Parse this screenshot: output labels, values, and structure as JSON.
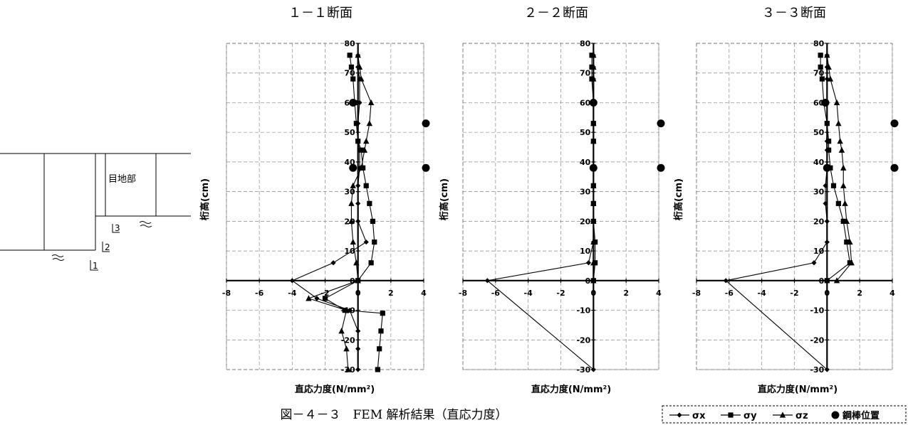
{
  "figure_caption": "図－４－３　FEM 解析結果（直応力度）",
  "joint_diagram": {
    "joint_label": "目地部",
    "section_marks": [
      "1",
      "2",
      "3"
    ]
  },
  "legend": {
    "items": [
      {
        "label": "σx",
        "marker": "diamond"
      },
      {
        "label": "σy",
        "marker": "square"
      },
      {
        "label": "σz",
        "marker": "triangle"
      },
      {
        "label": "鋼棒位置",
        "marker": "circle"
      }
    ]
  },
  "chart_data": [
    {
      "type": "line",
      "title": "１－１断面",
      "xlabel": "直応力度(N/mm²)",
      "ylabel": "桁高(cm)",
      "xlim": [
        -8,
        4
      ],
      "ylim": [
        -30,
        80
      ],
      "x_ticks": [
        -8,
        -6,
        -4,
        -2,
        0,
        2,
        4
      ],
      "y_ticks": [
        80,
        70,
        60,
        50,
        40,
        30,
        20,
        10,
        0,
        -10,
        -20,
        -30
      ],
      "grid": true,
      "series": [
        {
          "name": "σx",
          "marker": "diamond",
          "points": [
            [
              0.0,
              76
            ],
            [
              0.0,
              72
            ],
            [
              0.1,
              68
            ],
            [
              0.1,
              60
            ],
            [
              0.0,
              53
            ],
            [
              0.0,
              47
            ],
            [
              0.1,
              44
            ],
            [
              0.1,
              38
            ],
            [
              0.0,
              32
            ],
            [
              0.0,
              26
            ],
            [
              0.0,
              20
            ],
            [
              0.5,
              13
            ],
            [
              -1.5,
              6
            ],
            [
              -4.0,
              0
            ],
            [
              -2.5,
              -6
            ],
            [
              -0.5,
              -10
            ],
            [
              0.0,
              -17
            ],
            [
              0.0,
              -23
            ],
            [
              0.0,
              -30
            ]
          ]
        },
        {
          "name": "σy",
          "marker": "square",
          "points": [
            [
              -0.5,
              76
            ],
            [
              -0.4,
              72
            ],
            [
              -0.3,
              68
            ],
            [
              -0.2,
              60
            ],
            [
              -0.1,
              53
            ],
            [
              0.0,
              47
            ],
            [
              0.2,
              44
            ],
            [
              0.3,
              38
            ],
            [
              0.5,
              32
            ],
            [
              0.7,
              26
            ],
            [
              0.9,
              20
            ],
            [
              1.0,
              13
            ],
            [
              0.8,
              6
            ],
            [
              0.0,
              0
            ],
            [
              -2.0,
              -6
            ],
            [
              -0.8,
              -10
            ],
            [
              1.5,
              -11
            ],
            [
              1.4,
              -17
            ],
            [
              1.3,
              -23
            ],
            [
              1.2,
              -30
            ]
          ]
        },
        {
          "name": "σz",
          "marker": "triangle",
          "points": [
            [
              0.0,
              76
            ],
            [
              0.1,
              72
            ],
            [
              0.2,
              68
            ],
            [
              0.8,
              60
            ],
            [
              0.7,
              53
            ],
            [
              0.5,
              47
            ],
            [
              0.4,
              44
            ],
            [
              0.2,
              38
            ],
            [
              -0.3,
              32
            ],
            [
              -0.4,
              26
            ],
            [
              -0.4,
              20
            ],
            [
              -0.3,
              13
            ],
            [
              -0.1,
              6
            ],
            [
              0.0,
              0
            ],
            [
              -3.0,
              -6
            ],
            [
              -0.7,
              -10
            ],
            [
              -1.0,
              -17
            ],
            [
              -0.7,
              -23
            ],
            [
              -0.6,
              -30
            ]
          ]
        },
        {
          "name": "鋼棒位置",
          "marker": "circle",
          "points": [
            [
              -0.3,
              60
            ],
            [
              -0.3,
              38
            ]
          ]
        }
      ],
      "rebar_outside": [
        53,
        38
      ]
    },
    {
      "type": "line",
      "title": "２－２断面",
      "xlabel": "直応力度(N/mm²)",
      "ylabel": "桁高(cm)",
      "xlim": [
        -8,
        4
      ],
      "ylim": [
        -30,
        80
      ],
      "x_ticks": [
        -8,
        -6,
        -4,
        -2,
        0,
        2,
        4
      ],
      "y_ticks": [
        80,
        70,
        60,
        50,
        40,
        30,
        20,
        10,
        0,
        -10,
        -20,
        -30
      ],
      "grid": true,
      "series": [
        {
          "name": "σx",
          "marker": "diamond",
          "points": [
            [
              0.0,
              76
            ],
            [
              0.0,
              72
            ],
            [
              0.0,
              68
            ],
            [
              0.0,
              60
            ],
            [
              0.0,
              53
            ],
            [
              0.0,
              47
            ],
            [
              0.0,
              38
            ],
            [
              0.0,
              32
            ],
            [
              0.0,
              26
            ],
            [
              0.0,
              20
            ],
            [
              0.0,
              13
            ],
            [
              -0.3,
              6
            ],
            [
              -6.5,
              0
            ],
            [
              0.0,
              -30
            ]
          ]
        },
        {
          "name": "σy",
          "marker": "square",
          "points": [
            [
              -0.1,
              76
            ],
            [
              -0.1,
              72
            ],
            [
              -0.1,
              68
            ],
            [
              0.0,
              60
            ],
            [
              0.0,
              53
            ],
            [
              0.0,
              47
            ],
            [
              0.0,
              38
            ],
            [
              0.0,
              32
            ],
            [
              0.0,
              26
            ],
            [
              0.0,
              20
            ],
            [
              0.1,
              13
            ],
            [
              0.1,
              6
            ],
            [
              0.0,
              0
            ]
          ]
        },
        {
          "name": "σz",
          "marker": "triangle",
          "points": [
            [
              0.0,
              76
            ],
            [
              0.0,
              72
            ],
            [
              0.0,
              68
            ],
            [
              0.0,
              60
            ],
            [
              0.0,
              53
            ],
            [
              0.0,
              47
            ],
            [
              0.0,
              38
            ],
            [
              0.0,
              32
            ],
            [
              0.0,
              26
            ],
            [
              0.0,
              20
            ],
            [
              0.0,
              13
            ],
            [
              0.0,
              6
            ],
            [
              0.0,
              0
            ]
          ]
        },
        {
          "name": "鋼棒位置",
          "marker": "circle",
          "points": [
            [
              0.0,
              60
            ],
            [
              0.0,
              38
            ]
          ]
        }
      ],
      "rebar_outside": [
        53,
        38
      ]
    },
    {
      "type": "line",
      "title": "３－３断面",
      "xlabel": "直応力度(N/mm²)",
      "ylabel": "桁高(cm)",
      "xlim": [
        -8,
        4
      ],
      "ylim": [
        -30,
        80
      ],
      "x_ticks": [
        -8,
        -6,
        -4,
        -2,
        0,
        2,
        4
      ],
      "y_ticks": [
        80,
        70,
        60,
        50,
        40,
        30,
        20,
        10,
        0,
        -10,
        -20,
        -30
      ],
      "grid": true,
      "series": [
        {
          "name": "σx",
          "marker": "diamond",
          "points": [
            [
              0.0,
              76
            ],
            [
              0.0,
              72
            ],
            [
              0.0,
              68
            ],
            [
              0.0,
              60
            ],
            [
              0.0,
              53
            ],
            [
              0.0,
              47
            ],
            [
              0.0,
              44
            ],
            [
              0.0,
              38
            ],
            [
              -0.1,
              32
            ],
            [
              -0.1,
              26
            ],
            [
              0.0,
              20
            ],
            [
              0.0,
              13
            ],
            [
              -0.8,
              6
            ],
            [
              -6.2,
              0
            ],
            [
              0.0,
              -30
            ]
          ]
        },
        {
          "name": "σy",
          "marker": "square",
          "points": [
            [
              -0.4,
              76
            ],
            [
              -0.4,
              72
            ],
            [
              -0.3,
              68
            ],
            [
              -0.2,
              60
            ],
            [
              0.0,
              53
            ],
            [
              0.1,
              47
            ],
            [
              0.1,
              44
            ],
            [
              0.2,
              38
            ],
            [
              0.4,
              32
            ],
            [
              0.7,
              26
            ],
            [
              1.0,
              20
            ],
            [
              1.2,
              13
            ],
            [
              1.4,
              6
            ],
            [
              0.0,
              0
            ]
          ]
        },
        {
          "name": "σz",
          "marker": "triangle",
          "points": [
            [
              0.0,
              76
            ],
            [
              0.1,
              72
            ],
            [
              0.2,
              68
            ],
            [
              0.6,
              60
            ],
            [
              0.7,
              53
            ],
            [
              0.8,
              47
            ],
            [
              0.9,
              44
            ],
            [
              1.0,
              38
            ],
            [
              1.0,
              32
            ],
            [
              1.1,
              26
            ],
            [
              1.2,
              20
            ],
            [
              1.4,
              13
            ],
            [
              1.5,
              6
            ],
            [
              0.6,
              0
            ]
          ]
        },
        {
          "name": "鋼棒位置",
          "marker": "circle",
          "points": [
            [
              -0.1,
              60
            ],
            [
              0.0,
              38
            ]
          ]
        }
      ],
      "rebar_outside": [
        53,
        38
      ]
    }
  ]
}
